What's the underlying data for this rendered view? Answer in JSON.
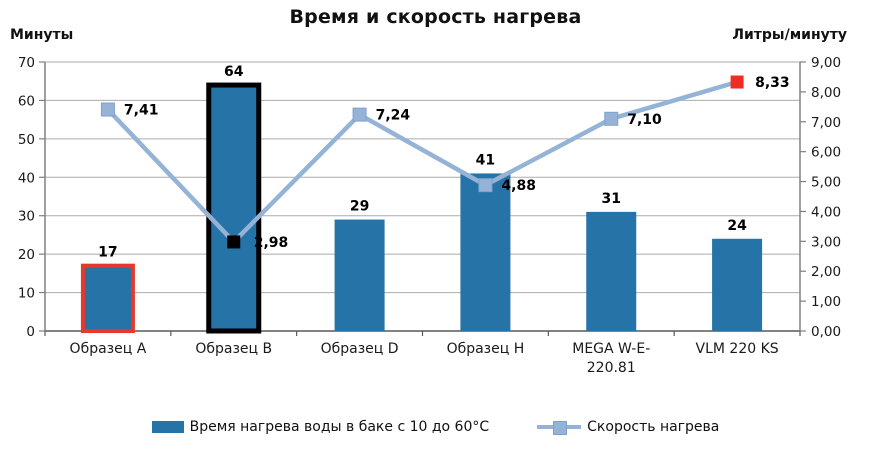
{
  "chart_data": {
    "type": "combo",
    "title": "Время и скорость нагрева",
    "categories": [
      "Образец A",
      "Образец B",
      "Образец D",
      "Образец H",
      "MEGA W-E-220.81",
      "VLM 220 KS"
    ],
    "category_label_lines": [
      [
        "Образец A"
      ],
      [
        "Образец B"
      ],
      [
        "Образец D"
      ],
      [
        "Образец H"
      ],
      [
        "MEGA W-E-",
        "220.81"
      ],
      [
        "VLM 220 KS"
      ]
    ],
    "series": [
      {
        "name": "Время нагрева воды в баке с 10 до 60°C",
        "type": "bar",
        "axis": "left",
        "values": [
          17,
          64,
          29,
          41,
          31,
          24
        ],
        "data_labels": [
          "17",
          "64",
          "29",
          "41",
          "31",
          "24"
        ],
        "color": "#2673A8",
        "bar_borders": [
          "#E8382C",
          "#000000",
          null,
          null,
          null,
          null
        ],
        "bar_border_widths": [
          4,
          5,
          0,
          0,
          0,
          0
        ]
      },
      {
        "name": "Скорость нагрева",
        "type": "line",
        "axis": "right",
        "values": [
          7.41,
          2.98,
          7.24,
          4.88,
          7.1,
          8.33
        ],
        "data_labels": [
          "7,41",
          "2,98",
          "7,24",
          "4,88",
          "7,10",
          "8,33"
        ],
        "color": "#95B3D7",
        "marker_border": "#7FA1CB",
        "marker_colors": [
          "#95B3D7",
          "#000000",
          "#95B3D7",
          "#95B3D7",
          "#95B3D7",
          "#EE2D24"
        ]
      }
    ],
    "left_axis": {
      "title": "Минуты",
      "min": 0,
      "max": 70,
      "step": 10,
      "tick_labels": [
        "0",
        "10",
        "20",
        "30",
        "40",
        "50",
        "60",
        "70"
      ]
    },
    "right_axis": {
      "title": "Литры/минуту",
      "min": 0,
      "max": 9,
      "step": 1,
      "tick_labels": [
        "0,00",
        "1,00",
        "2,00",
        "3,00",
        "4,00",
        "5,00",
        "6,00",
        "7,00",
        "8,00",
        "9,00"
      ]
    },
    "grid": true,
    "legend_position": "bottom",
    "colors": {
      "gridline": "#ABABAB",
      "axis_line": "#808080",
      "x_axis_line": "#595959",
      "text": "#1A1A1A",
      "background": "#FFFFFF"
    }
  }
}
